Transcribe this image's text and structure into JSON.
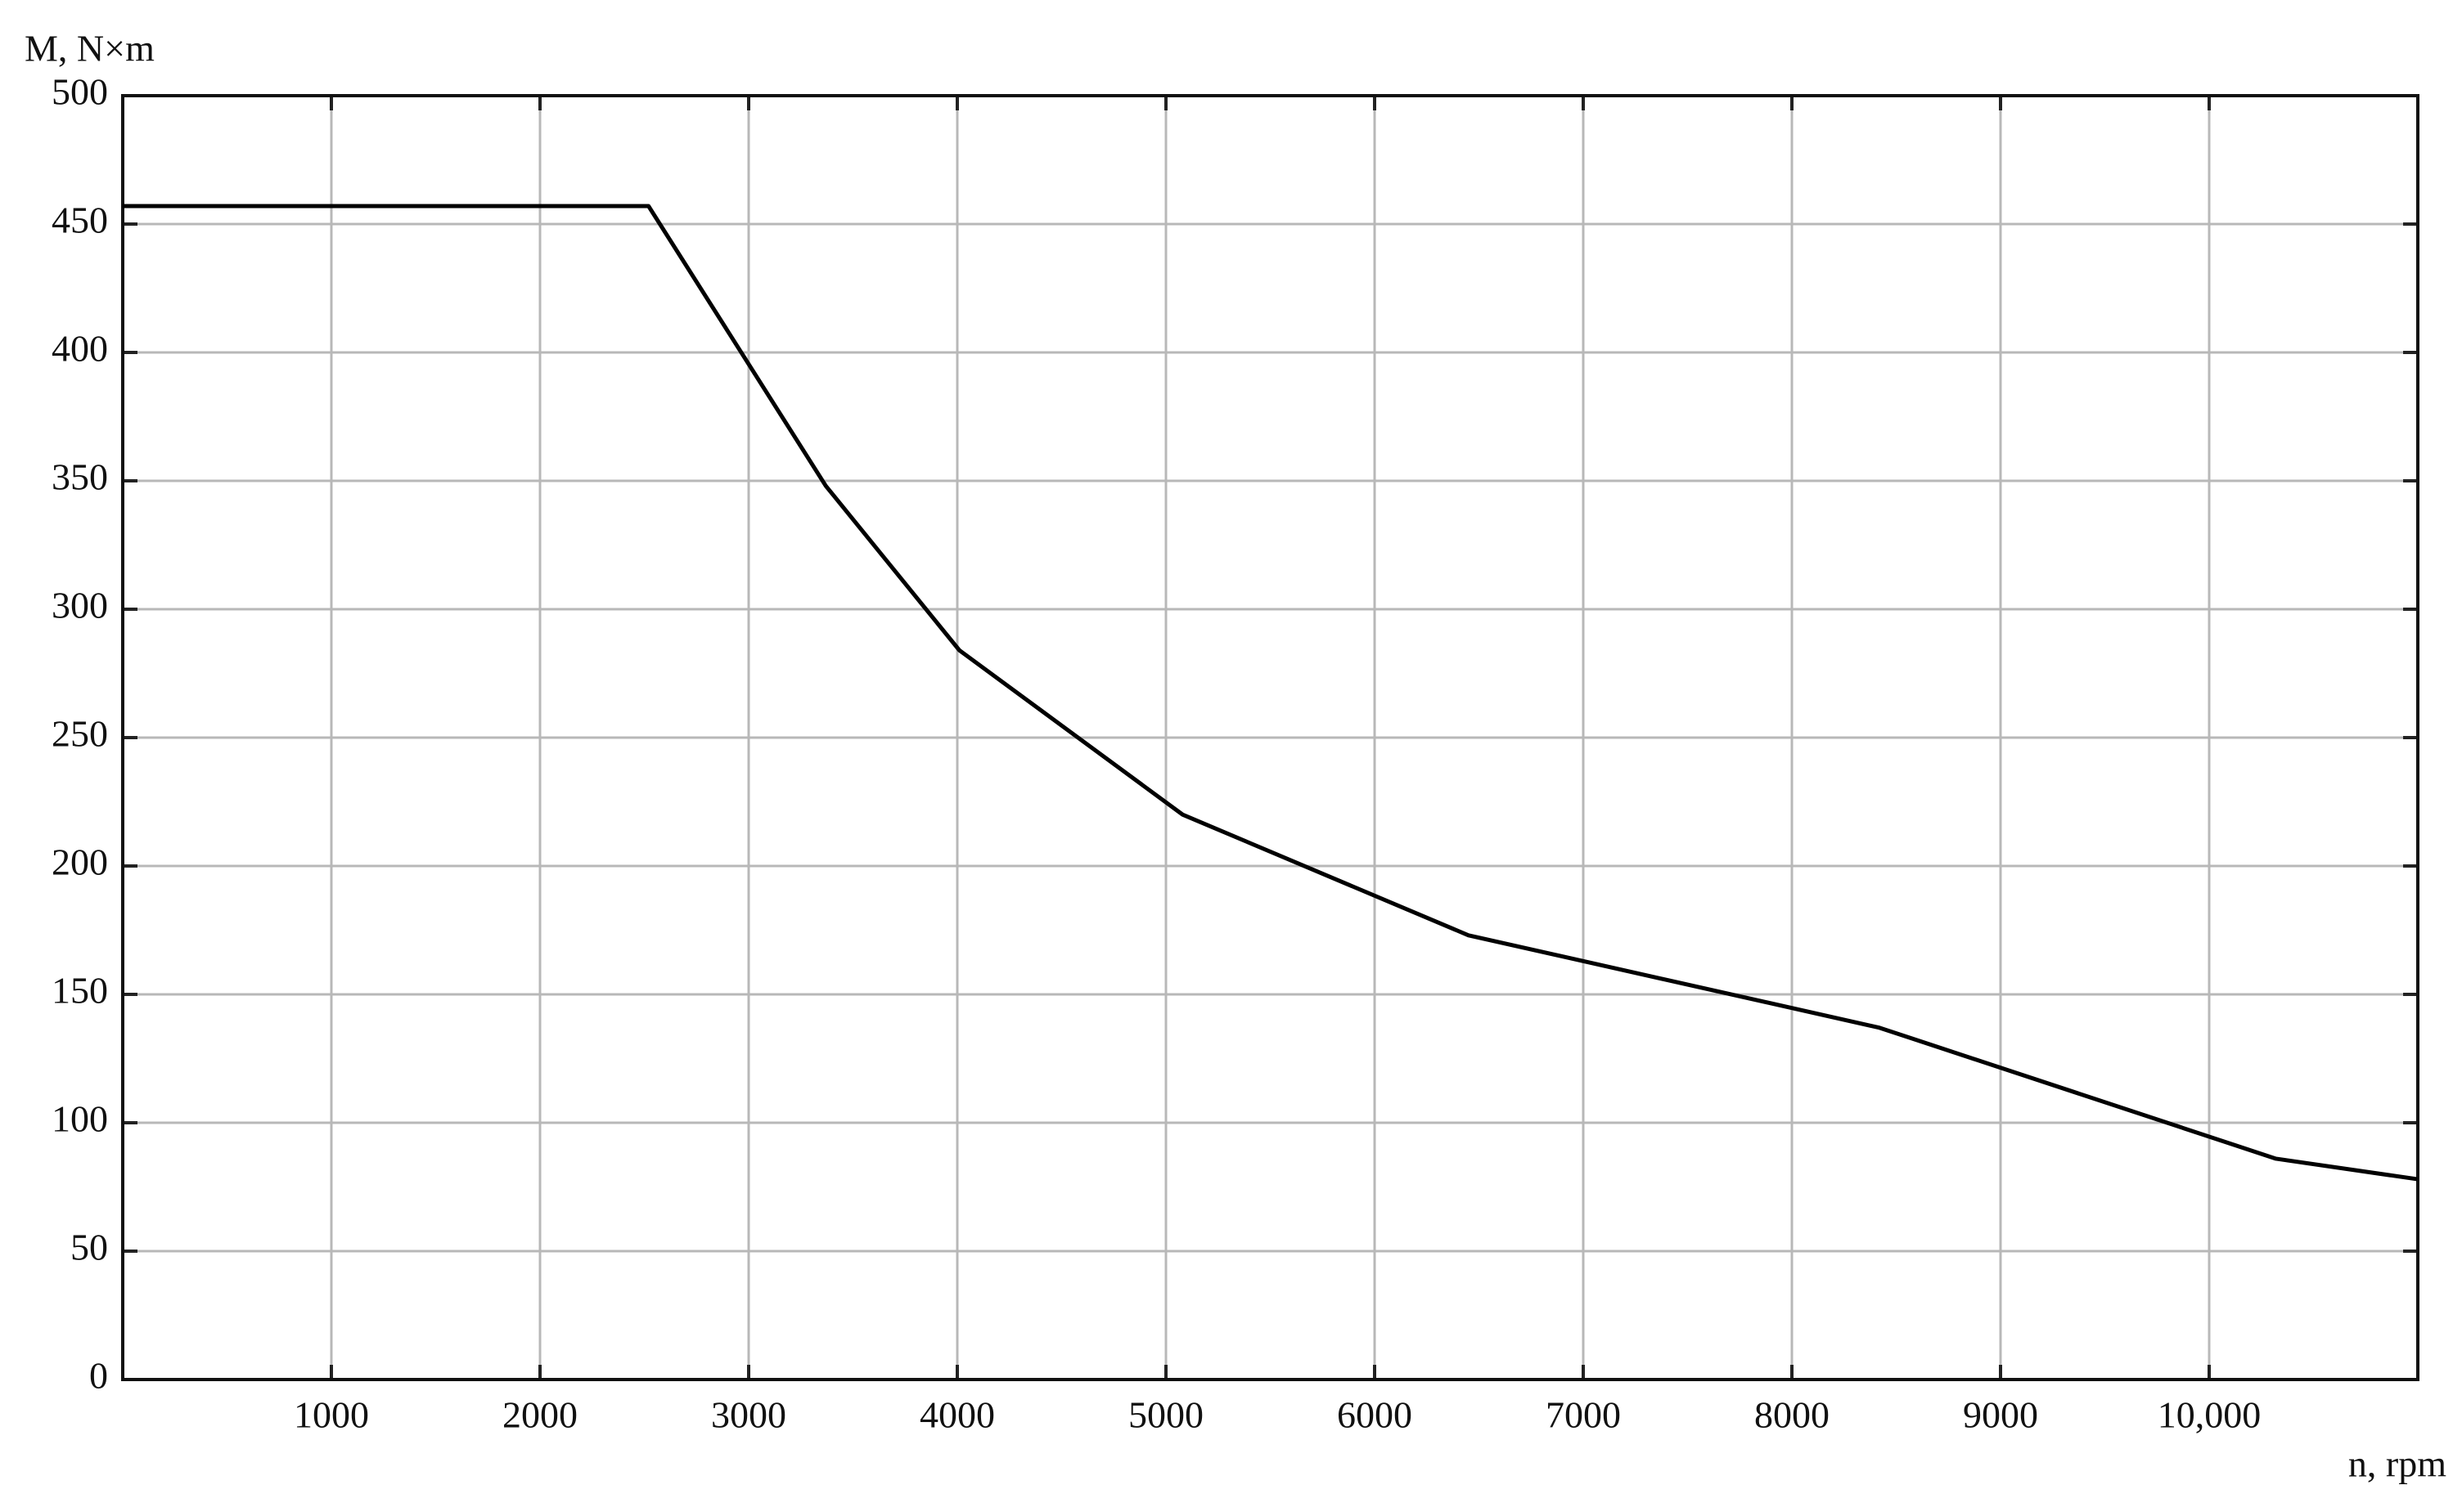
{
  "chart_data": {
    "type": "line",
    "y_label": "M, N×m",
    "x_label": "n, rpm",
    "x": [
      0,
      2520,
      3370,
      4010,
      5080,
      6450,
      8420,
      10320,
      11000
    ],
    "series": [
      {
        "color": "#000000",
        "values": [
          457,
          457,
          348,
          284,
          220,
          173,
          137,
          86,
          78
        ]
      }
    ],
    "xlim": [
      0,
      11000
    ],
    "xticks": [
      1000,
      2000,
      3000,
      4000,
      5000,
      6000,
      7000,
      8000,
      9000,
      {
        "value": 10000,
        "label": "10,000"
      }
    ],
    "ylim": [
      0,
      500
    ],
    "yticks": [
      0,
      50,
      100,
      150,
      200,
      250,
      300,
      350,
      400,
      450,
      500
    ],
    "grid": true
  }
}
